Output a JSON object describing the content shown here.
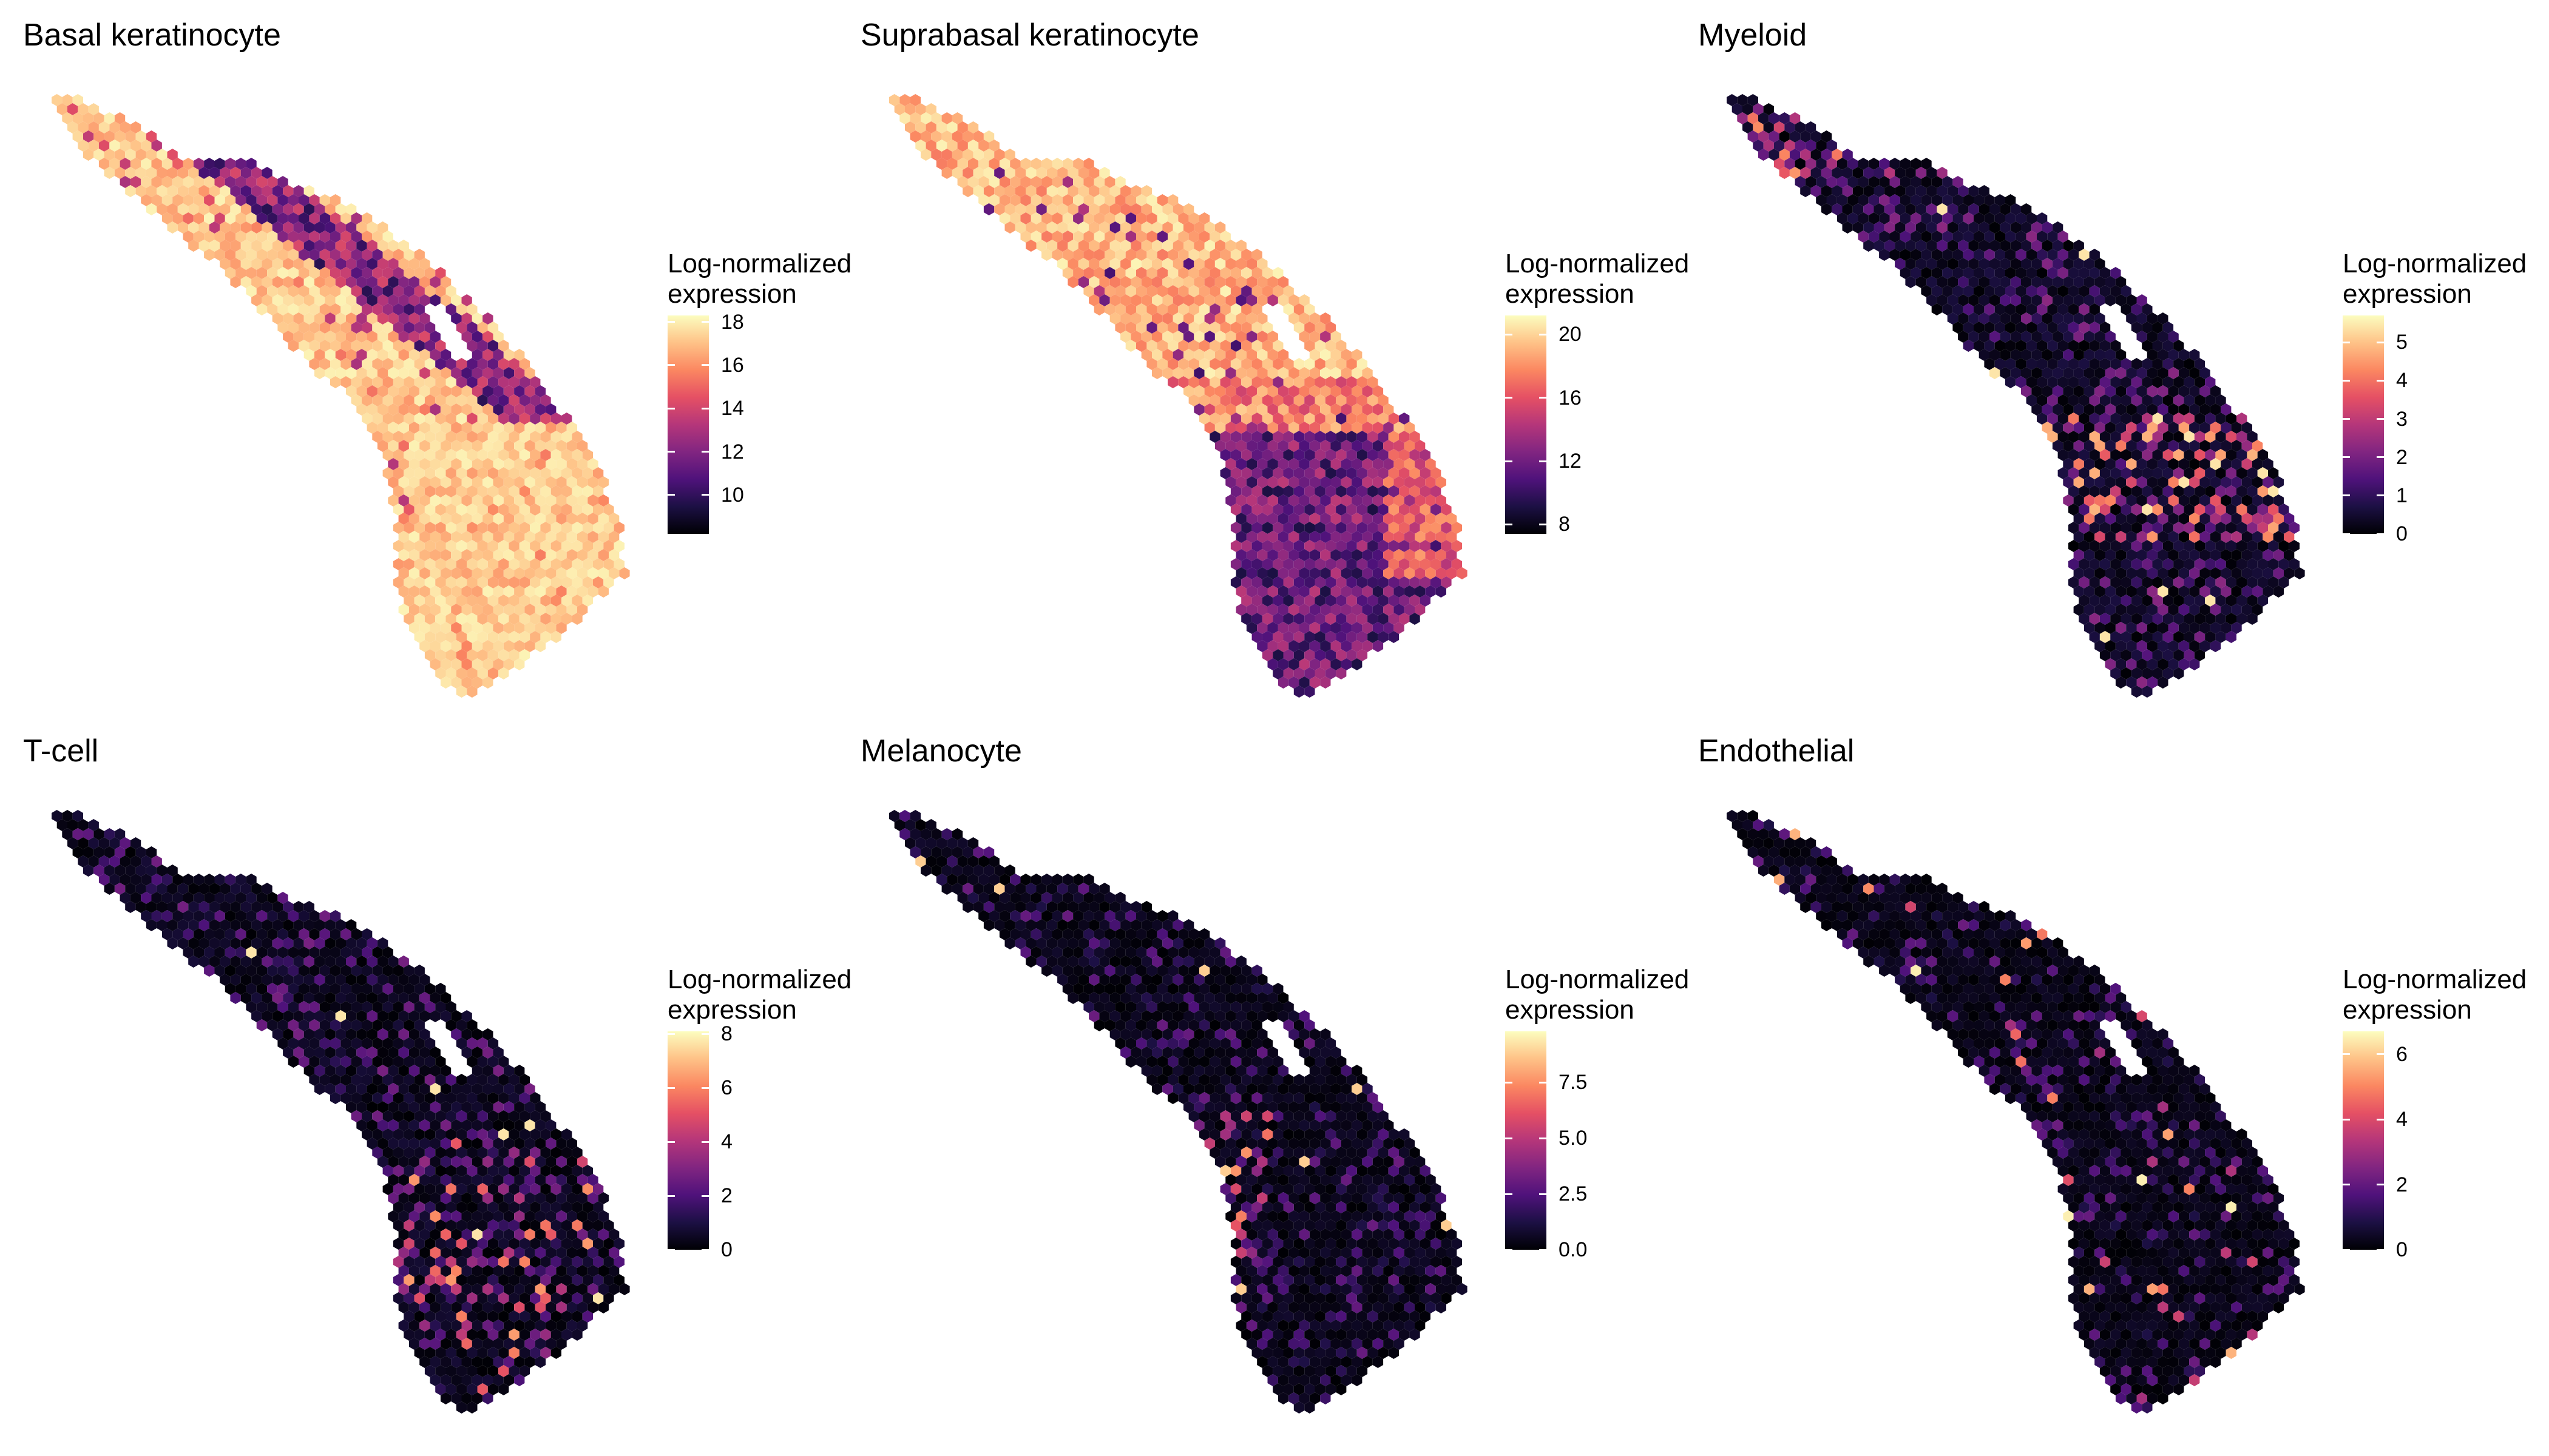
{
  "figure": {
    "colormap": [
      "#000004",
      "#1c1044",
      "#4f127b",
      "#812581",
      "#b5367a",
      "#e55064",
      "#fb8761",
      "#fec287",
      "#fcfdbf"
    ]
  },
  "chart_data": [
    {
      "type": "heatmap",
      "title": "Basal keratinocyte",
      "legend_title_line1": "Log-normalized",
      "legend_title_line2": "expression",
      "legend_range": [
        8.2,
        18.3
      ],
      "legend_ticks": [
        "10",
        "12",
        "14",
        "16",
        "18"
      ],
      "legend_tick_values": [
        10,
        12,
        14,
        16,
        18
      ],
      "pattern": "high_everywhere_with_low_band"
    },
    {
      "type": "heatmap",
      "title": "Suprabasal keratinocyte",
      "legend_title_line1": "Log-normalized",
      "legend_title_line2": "expression",
      "legend_range": [
        7.4,
        21.2
      ],
      "legend_ticks": [
        "8",
        "12",
        "16",
        "20"
      ],
      "legend_tick_values": [
        8,
        12,
        16,
        20
      ],
      "pattern": "high_upper_low_lower"
    },
    {
      "type": "heatmap",
      "title": "Myeloid",
      "legend_title_line1": "Log-normalized",
      "legend_title_line2": "expression",
      "legend_range": [
        0,
        5.7
      ],
      "legend_ticks": [
        "0",
        "1",
        "2",
        "3",
        "4",
        "5"
      ],
      "legend_tick_values": [
        0,
        1,
        2,
        3,
        4,
        5
      ],
      "pattern": "sparse_mid_hotspots"
    },
    {
      "type": "heatmap",
      "title": "T-cell",
      "legend_title_line1": "Log-normalized",
      "legend_title_line2": "expression",
      "legend_range": [
        0,
        8.1
      ],
      "legend_ticks": [
        "0",
        "2",
        "4",
        "6",
        "8"
      ],
      "legend_tick_values": [
        0,
        2,
        4,
        6,
        8
      ],
      "pattern": "sparse_lower"
    },
    {
      "type": "heatmap",
      "title": "Melanocyte",
      "legend_title_line1": "Log-normalized",
      "legend_title_line2": "expression",
      "legend_range": [
        0,
        9.8
      ],
      "legend_ticks": [
        "0.0",
        "2.5",
        "5.0",
        "7.5"
      ],
      "legend_tick_values": [
        0,
        2.5,
        5,
        7.5
      ],
      "pattern": "sparse_edge"
    },
    {
      "type": "heatmap",
      "title": "Endothelial",
      "legend_title_line1": "Log-normalized",
      "legend_title_line2": "expression",
      "legend_range": [
        0,
        6.7
      ],
      "legend_ticks": [
        "0",
        "2",
        "4",
        "6"
      ],
      "legend_tick_values": [
        0,
        2,
        4,
        6
      ],
      "pattern": "very_sparse"
    }
  ]
}
